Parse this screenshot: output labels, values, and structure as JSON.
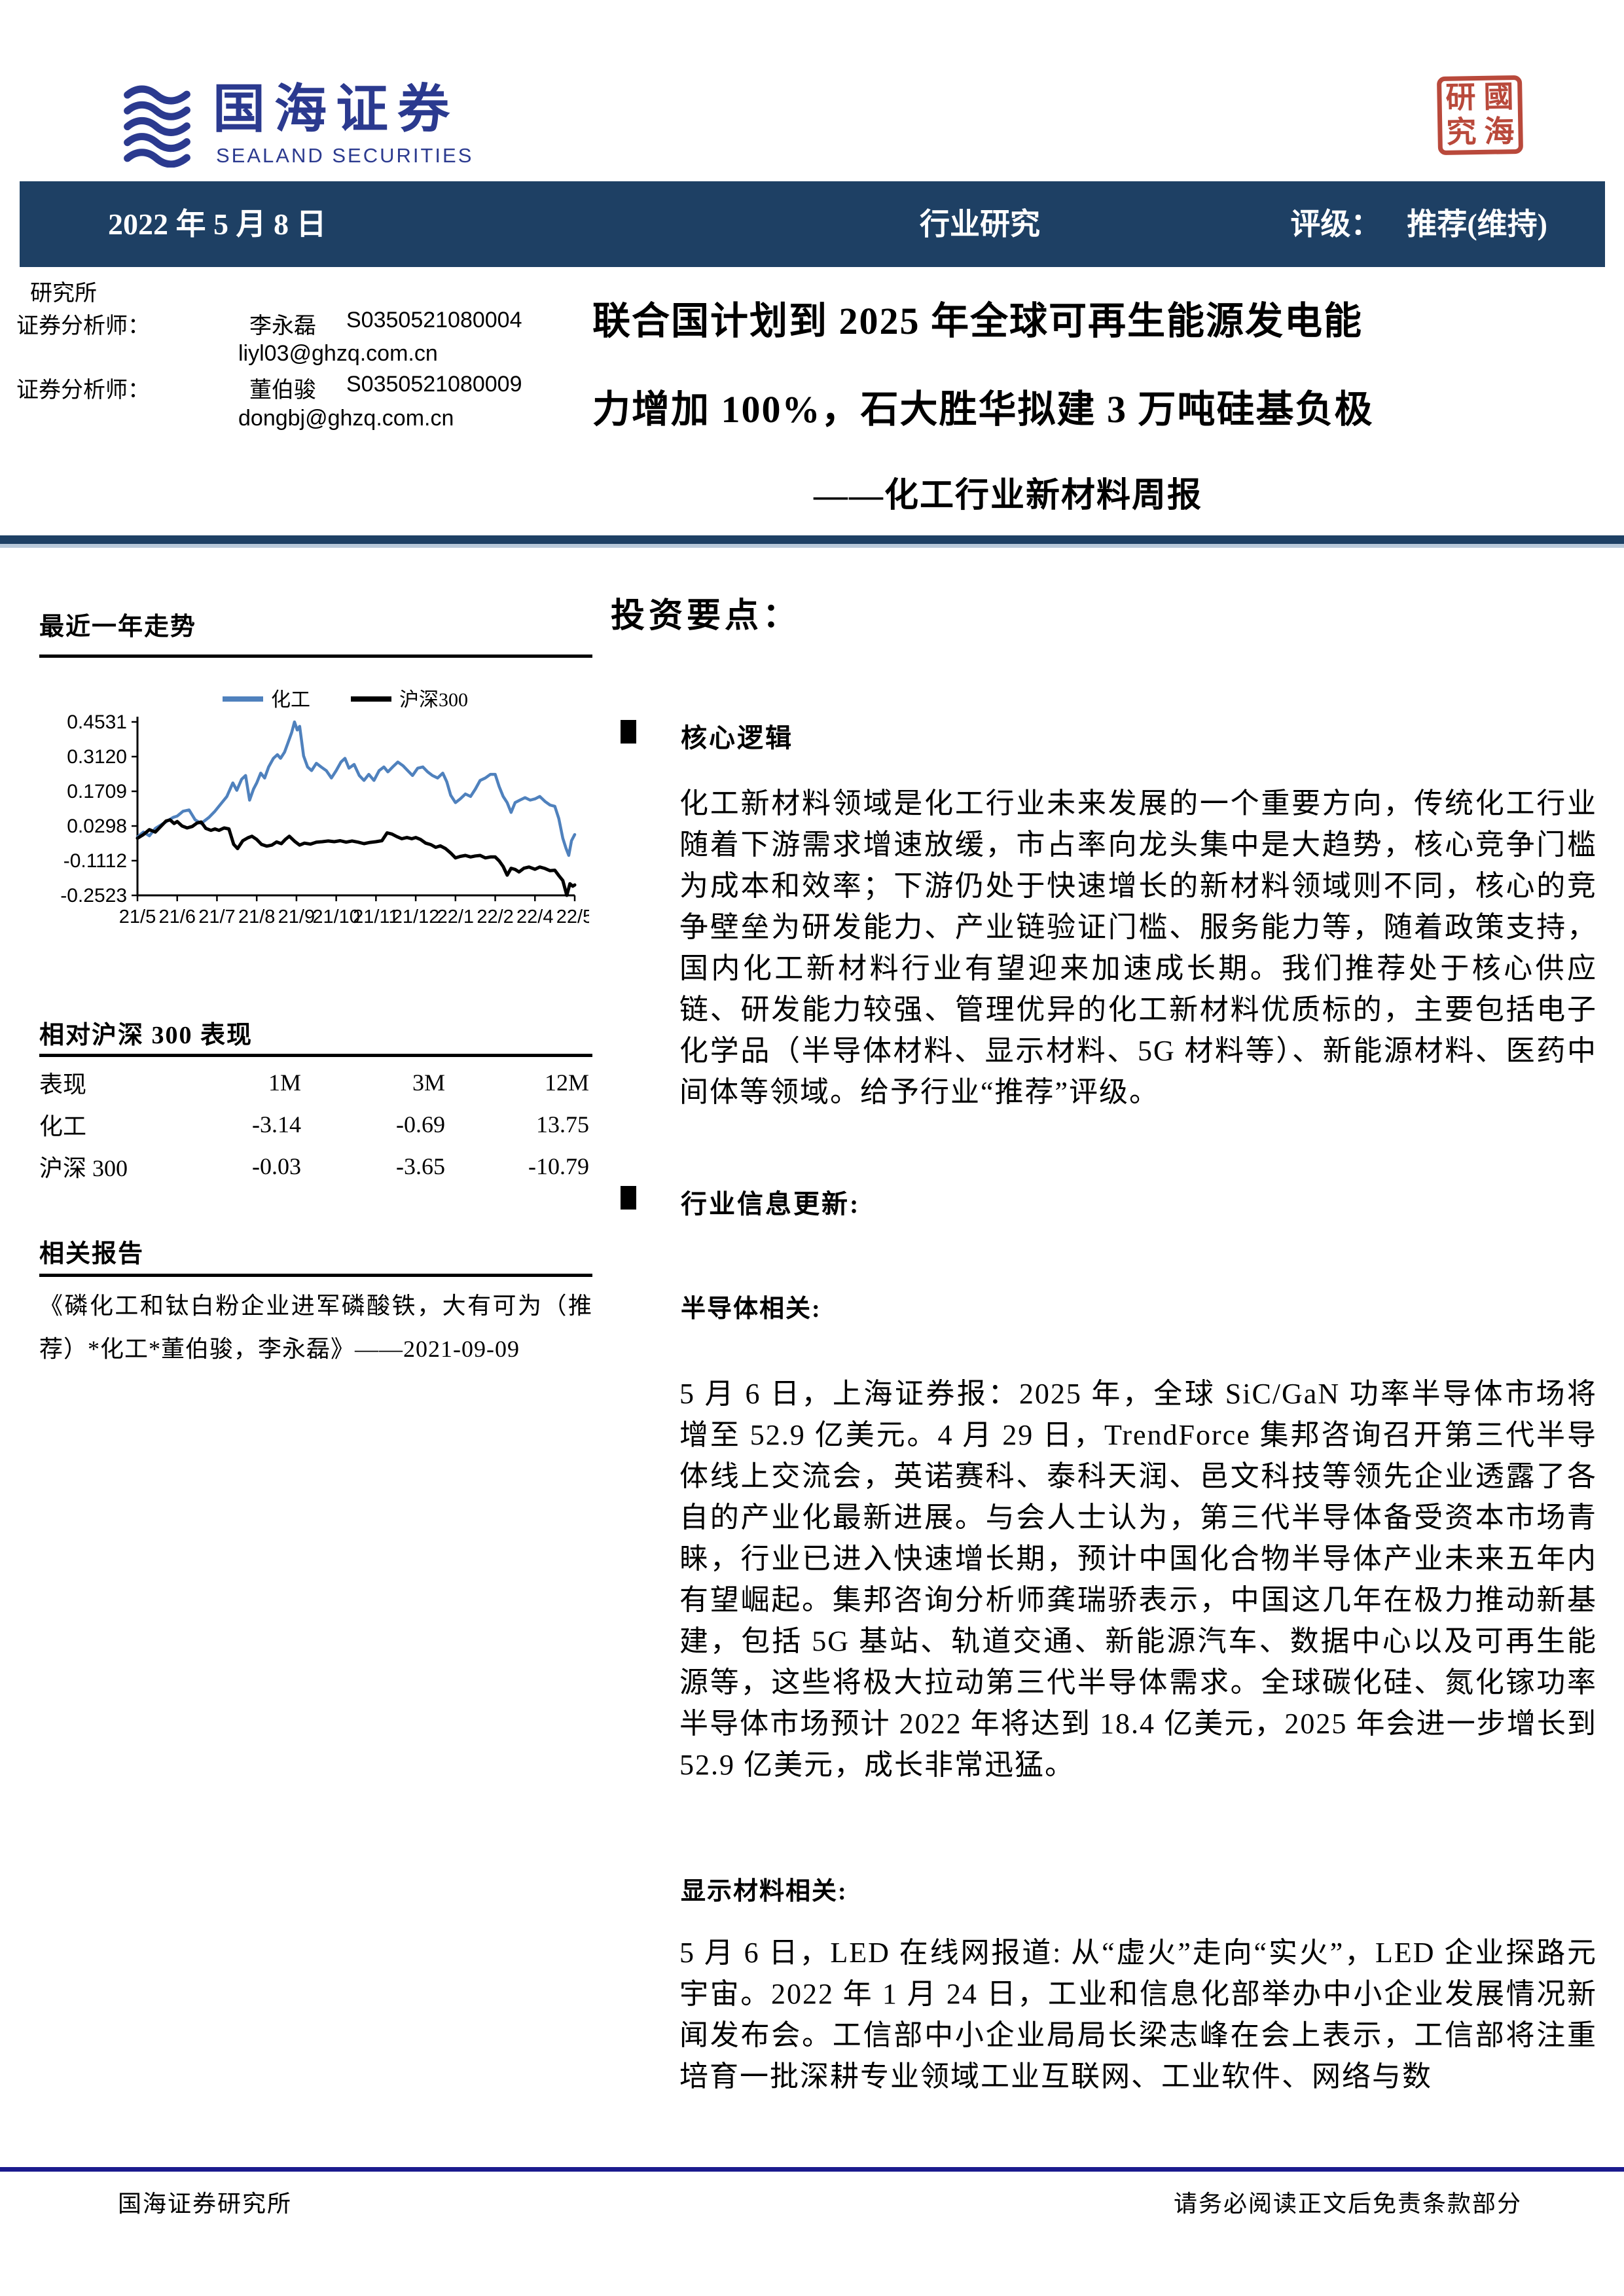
{
  "brand": {
    "logo_cn": "国海证券",
    "logo_en": "SEALAND SECURITIES"
  },
  "seal": {
    "chars": [
      "研",
      "國",
      "究",
      "海"
    ]
  },
  "header_bar": {
    "date": "2022 年 5 月 8 日",
    "category": "行业研究",
    "rating_label": "评级：",
    "rating_value": "推荐(维持)"
  },
  "research_office": "研究所",
  "analysts": [
    {
      "role": "证券分析师：",
      "name": "李永磊",
      "cert": "S0350521080004",
      "email": "liyl03@ghzq.com.cn"
    },
    {
      "role": "证券分析师：",
      "name": "董伯骏",
      "cert": "S0350521080009",
      "email": "dongbj@ghzq.com.cn"
    }
  ],
  "title": {
    "line1": "联合国计划到 2025 年全球可再生能源发电能",
    "line2": "力增加 100%，石大胜华拟建 3 万吨硅基负极",
    "subtitle": "——化工行业新材料周报"
  },
  "sidebar": {
    "trend_heading": "最近一年走势",
    "perf_heading": "相对沪深 300 表现",
    "perf_table": {
      "headers": [
        "表现",
        "1M",
        "3M",
        "12M"
      ],
      "rows": [
        [
          "化工",
          "-3.14",
          "-0.69",
          "13.75"
        ],
        [
          "沪深 300",
          "-0.03",
          "-3.65",
          "-10.79"
        ]
      ]
    },
    "reports_heading": "相关报告",
    "report_item": "《磷化工和钛白粉企业进军磷酸铁，大有可为（推荐）*化工*董伯骏，李永磊》——2021-09-09"
  },
  "chart_data": {
    "type": "line",
    "title": "最近一年走势",
    "grid": false,
    "legend_position": "top",
    "ylim": [
      -0.2523,
      0.4531
    ],
    "y_tick_labels": [
      "0.4531",
      "0.3120",
      "0.1709",
      "0.0298",
      "-0.1112",
      "-0.2523"
    ],
    "x_tick_labels": [
      "21/5",
      "21/6",
      "21/7",
      "21/8",
      "21/9",
      "21/10",
      "21/11",
      "21/12",
      "22/1",
      "22/2",
      "22/4",
      "22/5"
    ],
    "series": [
      {
        "name": "化工",
        "color": "#4f81bd",
        "points": [
          [
            0,
            -0.015
          ],
          [
            0.15,
            0.005
          ],
          [
            0.3,
            -0.01
          ],
          [
            0.45,
            0.02
          ],
          [
            0.6,
            0.035
          ],
          [
            0.75,
            0.05
          ],
          [
            0.9,
            0.065
          ],
          [
            1.0,
            0.07
          ],
          [
            1.15,
            0.09
          ],
          [
            1.3,
            0.095
          ],
          [
            1.45,
            0.055
          ],
          [
            1.6,
            0.04
          ],
          [
            1.8,
            0.065
          ],
          [
            1.95,
            0.09
          ],
          [
            2.1,
            0.12
          ],
          [
            2.25,
            0.15
          ],
          [
            2.4,
            0.205
          ],
          [
            2.5,
            0.175
          ],
          [
            2.62,
            0.22
          ],
          [
            2.72,
            0.235
          ],
          [
            2.82,
            0.135
          ],
          [
            2.92,
            0.18
          ],
          [
            3.0,
            0.205
          ],
          [
            3.1,
            0.245
          ],
          [
            3.2,
            0.225
          ],
          [
            3.3,
            0.27
          ],
          [
            3.42,
            0.305
          ],
          [
            3.52,
            0.32
          ],
          [
            3.6,
            0.305
          ],
          [
            3.7,
            0.33
          ],
          [
            3.78,
            0.365
          ],
          [
            3.88,
            0.41
          ],
          [
            3.95,
            0.4531
          ],
          [
            4.02,
            0.42
          ],
          [
            4.08,
            0.435
          ],
          [
            4.18,
            0.315
          ],
          [
            4.28,
            0.27
          ],
          [
            4.38,
            0.255
          ],
          [
            4.5,
            0.285
          ],
          [
            4.62,
            0.27
          ],
          [
            4.75,
            0.255
          ],
          [
            4.88,
            0.225
          ],
          [
            5.0,
            0.255
          ],
          [
            5.12,
            0.29
          ],
          [
            5.22,
            0.305
          ],
          [
            5.32,
            0.265
          ],
          [
            5.45,
            0.28
          ],
          [
            5.58,
            0.235
          ],
          [
            5.7,
            0.215
          ],
          [
            5.82,
            0.24
          ],
          [
            5.95,
            0.215
          ],
          [
            6.08,
            0.255
          ],
          [
            6.2,
            0.27
          ],
          [
            6.3,
            0.25
          ],
          [
            6.42,
            0.27
          ],
          [
            6.55,
            0.29
          ],
          [
            6.68,
            0.275
          ],
          [
            6.8,
            0.255
          ],
          [
            6.92,
            0.235
          ],
          [
            7.05,
            0.265
          ],
          [
            7.18,
            0.27
          ],
          [
            7.3,
            0.25
          ],
          [
            7.42,
            0.235
          ],
          [
            7.55,
            0.225
          ],
          [
            7.68,
            0.245
          ],
          [
            7.78,
            0.21
          ],
          [
            7.88,
            0.155
          ],
          [
            8.0,
            0.125
          ],
          [
            8.12,
            0.14
          ],
          [
            8.25,
            0.16
          ],
          [
            8.38,
            0.15
          ],
          [
            8.5,
            0.18
          ],
          [
            8.62,
            0.215
          ],
          [
            8.75,
            0.225
          ],
          [
            8.88,
            0.24
          ],
          [
            9.0,
            0.24
          ],
          [
            9.1,
            0.19
          ],
          [
            9.2,
            0.15
          ],
          [
            9.3,
            0.125
          ],
          [
            9.4,
            0.085
          ],
          [
            9.5,
            0.125
          ],
          [
            9.62,
            0.135
          ],
          [
            9.75,
            0.145
          ],
          [
            9.88,
            0.135
          ],
          [
            10.0,
            0.14
          ],
          [
            10.12,
            0.15
          ],
          [
            10.25,
            0.13
          ],
          [
            10.38,
            0.115
          ],
          [
            10.5,
            0.11
          ],
          [
            10.6,
            0.06
          ],
          [
            10.7,
            -0.02
          ],
          [
            10.78,
            -0.06
          ],
          [
            10.85,
            -0.09
          ],
          [
            10.92,
            -0.03
          ],
          [
            11.0,
            -0.005
          ]
        ]
      },
      {
        "name": "沪深300",
        "color": "#000000",
        "points": [
          [
            0,
            -0.02
          ],
          [
            0.15,
            -0.005
          ],
          [
            0.3,
            0.015
          ],
          [
            0.45,
            0.005
          ],
          [
            0.6,
            0.03
          ],
          [
            0.72,
            0.05
          ],
          [
            0.82,
            0.055
          ],
          [
            0.92,
            0.04
          ],
          [
            1.0,
            0.048
          ],
          [
            1.12,
            0.03
          ],
          [
            1.25,
            0.022
          ],
          [
            1.38,
            0.028
          ],
          [
            1.5,
            0.042
          ],
          [
            1.6,
            0.046
          ],
          [
            1.72,
            0.02
          ],
          [
            1.85,
            0.012
          ],
          [
            1.95,
            0.018
          ],
          [
            2.05,
            0.012
          ],
          [
            2.18,
            0.022
          ],
          [
            2.3,
            0.018
          ],
          [
            2.42,
            -0.045
          ],
          [
            2.52,
            -0.062
          ],
          [
            2.65,
            -0.03
          ],
          [
            2.78,
            -0.018
          ],
          [
            2.88,
            -0.012
          ],
          [
            3.0,
            -0.025
          ],
          [
            3.12,
            -0.045
          ],
          [
            3.25,
            -0.052
          ],
          [
            3.38,
            -0.048
          ],
          [
            3.5,
            -0.035
          ],
          [
            3.62,
            -0.042
          ],
          [
            3.72,
            -0.025
          ],
          [
            3.82,
            -0.012
          ],
          [
            3.95,
            -0.032
          ],
          [
            4.08,
            -0.048
          ],
          [
            4.2,
            -0.04
          ],
          [
            4.35,
            -0.044
          ],
          [
            4.5,
            -0.036
          ],
          [
            4.65,
            -0.034
          ],
          [
            4.8,
            -0.031
          ],
          [
            4.95,
            -0.034
          ],
          [
            5.1,
            -0.03
          ],
          [
            5.25,
            -0.036
          ],
          [
            5.4,
            -0.031
          ],
          [
            5.55,
            -0.036
          ],
          [
            5.7,
            -0.042
          ],
          [
            5.85,
            -0.037
          ],
          [
            6.0,
            -0.034
          ],
          [
            6.15,
            -0.03
          ],
          [
            6.28,
            0.002
          ],
          [
            6.4,
            -0.003
          ],
          [
            6.52,
            -0.013
          ],
          [
            6.65,
            -0.022
          ],
          [
            6.78,
            -0.017
          ],
          [
            6.9,
            -0.022
          ],
          [
            7.0,
            -0.017
          ],
          [
            7.12,
            -0.025
          ],
          [
            7.25,
            -0.04
          ],
          [
            7.38,
            -0.046
          ],
          [
            7.5,
            -0.057
          ],
          [
            7.62,
            -0.051
          ],
          [
            7.75,
            -0.062
          ],
          [
            7.88,
            -0.08
          ],
          [
            8.0,
            -0.1
          ],
          [
            8.12,
            -0.094
          ],
          [
            8.25,
            -0.09
          ],
          [
            8.38,
            -0.096
          ],
          [
            8.5,
            -0.092
          ],
          [
            8.62,
            -0.09
          ],
          [
            8.75,
            -0.1
          ],
          [
            8.88,
            -0.096
          ],
          [
            9.0,
            -0.096
          ],
          [
            9.1,
            -0.112
          ],
          [
            9.2,
            -0.135
          ],
          [
            9.3,
            -0.17
          ],
          [
            9.4,
            -0.142
          ],
          [
            9.5,
            -0.147
          ],
          [
            9.6,
            -0.157
          ],
          [
            9.72,
            -0.142
          ],
          [
            9.85,
            -0.137
          ],
          [
            10.0,
            -0.146
          ],
          [
            10.12,
            -0.137
          ],
          [
            10.25,
            -0.143
          ],
          [
            10.38,
            -0.152
          ],
          [
            10.5,
            -0.15
          ],
          [
            10.6,
            -0.172
          ],
          [
            10.7,
            -0.192
          ],
          [
            10.8,
            -0.2523
          ],
          [
            10.88,
            -0.205
          ],
          [
            10.95,
            -0.215
          ],
          [
            11.0,
            -0.21
          ]
        ]
      }
    ]
  },
  "main": {
    "section_title": "投资要点：",
    "bullet1": "核心逻辑",
    "para1": "化工新材料领域是化工行业未来发展的一个重要方向，传统化工行业随着下游需求增速放缓，市占率向龙头集中是大趋势，核心竞争门槛为成本和效率；下游仍处于快速增长的新材料领域则不同，核心的竞争壁垒为研发能力、产业链验证门槛、服务能力等，随着政策支持，国内化工新材料行业有望迎来加速成长期。我们推荐处于核心供应链、研发能力较强、管理优异的化工新材料优质标的，主要包括电子化学品（半导体材料、显示材料、5G 材料等）、新能源材料、医药中间体等领域。给予行业“推荐”评级。",
    "bullet2": "行业信息更新:",
    "sub1": "半导体相关:",
    "para2": "5 月 6 日，上海证券报：2025 年，全球 SiC/GaN 功率半导体市场将增至 52.9 亿美元。4 月 29 日，TrendForce 集邦咨询召开第三代半导体线上交流会，英诺赛科、泰科天润、邑文科技等领先企业透露了各自的产业化最新进展。与会人士认为，第三代半导体备受资本市场青睐，行业已进入快速增长期，预计中国化合物半导体产业未来五年内有望崛起。集邦咨询分析师龚瑞骄表示，中国这几年在极力推动新基建，包括 5G 基站、轨道交通、新能源汽车、数据中心以及可再生能源等，这些将极大拉动第三代半导体需求。全球碳化硅、氮化镓功率半导体市场预计 2022 年将达到 18.4 亿美元，2025 年会进一步增长到 52.9 亿美元，成长非常迅猛。",
    "sub2": "显示材料相关:",
    "para3": "5 月 6 日，LED 在线网报道: 从“虚火”走向“实火”，LED 企业探路元宇宙。2022 年 1 月 24 日，工业和信息化部举办中小企业发展情况新闻发布会。工信部中小企业局局长梁志峰在会上表示，工信部将注重培育一批深耕专业领域工业互联网、工业软件、网络与数"
  },
  "footer": {
    "left": "国海证券研究所",
    "right": "请务必阅读正文后免责条款部分"
  },
  "colors": {
    "header_bar": "#1e4064",
    "divider_light": "#b9c9da",
    "footer_line": "#1b1b8e",
    "logo_blue": "#2b3a8f",
    "seal_red": "#b43a2b",
    "chart_blue": "#4f81bd"
  }
}
